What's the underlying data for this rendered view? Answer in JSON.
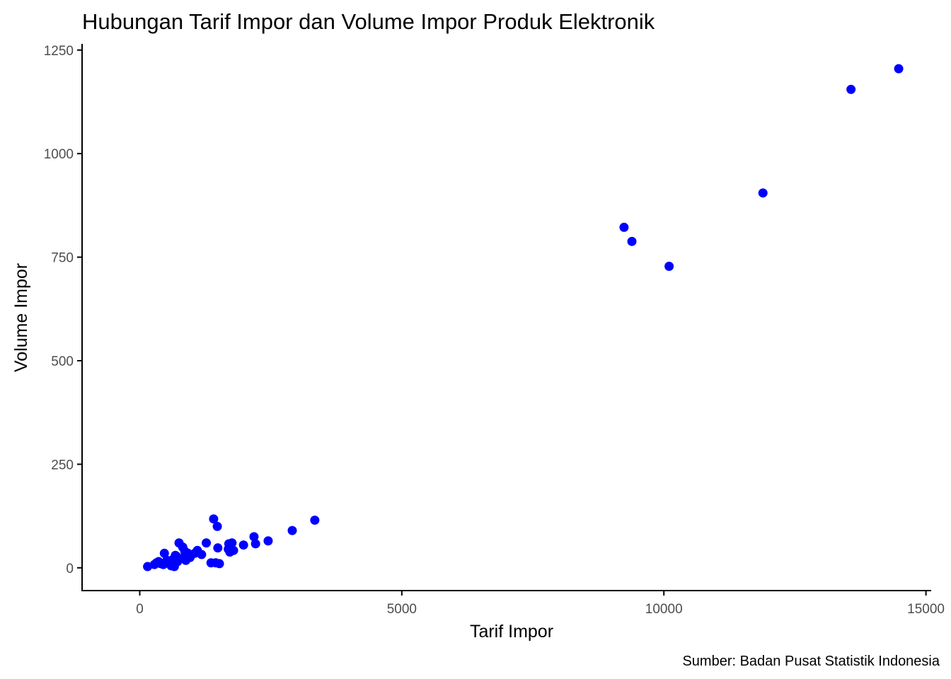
{
  "chart_data": {
    "type": "scatter",
    "title": "Hubungan Tarif Impor dan Volume Impor Produk Elektronik",
    "xlabel": "Tarif Impor",
    "ylabel": "Volume Impor",
    "caption": "Sumber: Badan Pusat Statistik Indonesia",
    "xlim": [
      -1100,
      15100
    ],
    "ylim": [
      -55,
      1265
    ],
    "x_ticks": [
      0,
      5000,
      10000,
      15000
    ],
    "x_tick_labels": [
      "0",
      "5000",
      "10000",
      "15000"
    ],
    "y_ticks": [
      0,
      250,
      500,
      750,
      1000,
      1250
    ],
    "y_tick_labels": [
      "0",
      "250",
      "500",
      "750",
      "1000",
      "1250"
    ],
    "grid": false,
    "legend": "none",
    "point_color": "#0000ff",
    "points": [
      {
        "x": 150,
        "y": 3
      },
      {
        "x": 280,
        "y": 8
      },
      {
        "x": 320,
        "y": 12
      },
      {
        "x": 360,
        "y": 15
      },
      {
        "x": 400,
        "y": 10
      },
      {
        "x": 450,
        "y": 8
      },
      {
        "x": 470,
        "y": 35
      },
      {
        "x": 520,
        "y": 18
      },
      {
        "x": 560,
        "y": 12
      },
      {
        "x": 600,
        "y": 5
      },
      {
        "x": 630,
        "y": 20
      },
      {
        "x": 660,
        "y": 3
      },
      {
        "x": 680,
        "y": 30
      },
      {
        "x": 700,
        "y": 28
      },
      {
        "x": 720,
        "y": 15
      },
      {
        "x": 750,
        "y": 60
      },
      {
        "x": 780,
        "y": 22
      },
      {
        "x": 820,
        "y": 50
      },
      {
        "x": 860,
        "y": 40
      },
      {
        "x": 880,
        "y": 18
      },
      {
        "x": 920,
        "y": 35
      },
      {
        "x": 960,
        "y": 25
      },
      {
        "x": 1050,
        "y": 35
      },
      {
        "x": 1100,
        "y": 42
      },
      {
        "x": 1180,
        "y": 32
      },
      {
        "x": 1270,
        "y": 60
      },
      {
        "x": 1360,
        "y": 12
      },
      {
        "x": 1410,
        "y": 118
      },
      {
        "x": 1450,
        "y": 12
      },
      {
        "x": 1480,
        "y": 100
      },
      {
        "x": 1490,
        "y": 48
      },
      {
        "x": 1520,
        "y": 10
      },
      {
        "x": 1690,
        "y": 45
      },
      {
        "x": 1700,
        "y": 58
      },
      {
        "x": 1720,
        "y": 38
      },
      {
        "x": 1760,
        "y": 60
      },
      {
        "x": 1790,
        "y": 42
      },
      {
        "x": 1980,
        "y": 55
      },
      {
        "x": 2180,
        "y": 75
      },
      {
        "x": 2210,
        "y": 58
      },
      {
        "x": 2450,
        "y": 65
      },
      {
        "x": 2910,
        "y": 90
      },
      {
        "x": 3340,
        "y": 115
      },
      {
        "x": 9240,
        "y": 822
      },
      {
        "x": 9390,
        "y": 788
      },
      {
        "x": 10100,
        "y": 728
      },
      {
        "x": 11890,
        "y": 905
      },
      {
        "x": 13570,
        "y": 1155
      },
      {
        "x": 14480,
        "y": 1205
      }
    ]
  }
}
